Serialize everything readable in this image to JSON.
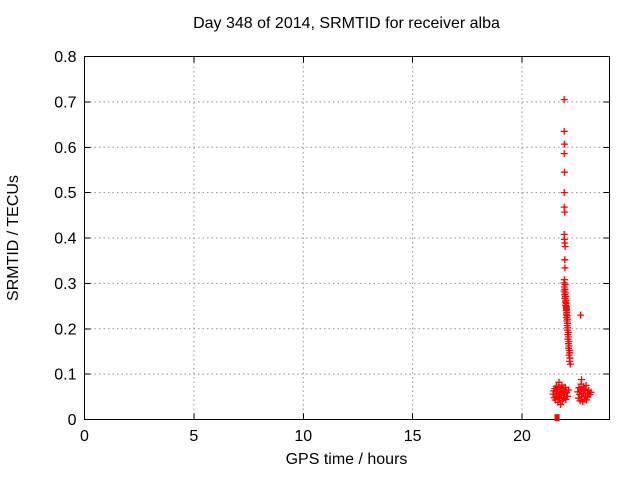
{
  "chart_data": {
    "type": "scatter",
    "title": "Day 348 of 2014, SRMTID for receiver alba",
    "xlabel": "GPS time / hours",
    "ylabel": "SRMTID / TECUs",
    "xlim": [
      0,
      24
    ],
    "ylim": [
      0,
      0.8
    ],
    "xticks": [
      0,
      5,
      10,
      15,
      20
    ],
    "yticks": [
      [
        0,
        "0"
      ],
      [
        0.1,
        "0.1"
      ],
      [
        0.2,
        "0.2"
      ],
      [
        0.3,
        "0.3"
      ],
      [
        0.4,
        "0.4"
      ],
      [
        0.5,
        "0.5"
      ],
      [
        0.6,
        "0.6"
      ],
      [
        0.7,
        "0.7"
      ],
      [
        0.8,
        "0.8"
      ]
    ],
    "grid": true,
    "legend": false,
    "colors": {
      "marker": "#ff0000",
      "grid": "#909090",
      "axis": "#000000",
      "background": "#ffffff"
    },
    "series": [
      {
        "name": "SRMTID",
        "marker": "plus",
        "points": [
          [
            21.93,
            0.705
          ],
          [
            21.93,
            0.635
          ],
          [
            21.94,
            0.607
          ],
          [
            21.93,
            0.586
          ],
          [
            21.94,
            0.545
          ],
          [
            21.93,
            0.5
          ],
          [
            21.93,
            0.468
          ],
          [
            21.95,
            0.457
          ],
          [
            21.93,
            0.408
          ],
          [
            21.94,
            0.397
          ],
          [
            21.95,
            0.389
          ],
          [
            21.97,
            0.381
          ],
          [
            21.95,
            0.352
          ],
          [
            21.96,
            0.334
          ],
          [
            21.94,
            0.308
          ],
          [
            21.92,
            0.301
          ],
          [
            21.97,
            0.297
          ],
          [
            21.94,
            0.292
          ],
          [
            21.96,
            0.287
          ],
          [
            21.93,
            0.283
          ],
          [
            21.98,
            0.279
          ],
          [
            21.95,
            0.275
          ],
          [
            21.99,
            0.271
          ],
          [
            21.96,
            0.267
          ],
          [
            22.0,
            0.263
          ],
          [
            21.98,
            0.259
          ],
          [
            22.02,
            0.256
          ],
          [
            21.99,
            0.252
          ],
          [
            22.03,
            0.249
          ],
          [
            22.01,
            0.246
          ],
          [
            22.04,
            0.243
          ],
          [
            22.02,
            0.24
          ],
          [
            22.05,
            0.236
          ],
          [
            22.03,
            0.232
          ],
          [
            22.06,
            0.229
          ],
          [
            22.04,
            0.225
          ],
          [
            22.07,
            0.221
          ],
          [
            22.05,
            0.217
          ],
          [
            22.68,
            0.23
          ],
          [
            22.08,
            0.212
          ],
          [
            22.06,
            0.207
          ],
          [
            22.09,
            0.202
          ],
          [
            22.07,
            0.197
          ],
          [
            22.11,
            0.192
          ],
          [
            22.09,
            0.187
          ],
          [
            22.12,
            0.182
          ],
          [
            22.1,
            0.177
          ],
          [
            22.14,
            0.172
          ],
          [
            22.12,
            0.167
          ],
          [
            22.15,
            0.162
          ],
          [
            22.13,
            0.157
          ],
          [
            22.16,
            0.152
          ],
          [
            22.18,
            0.147
          ],
          [
            22.15,
            0.142
          ],
          [
            22.19,
            0.135
          ],
          [
            22.17,
            0.128
          ],
          [
            22.21,
            0.122
          ],
          [
            21.42,
            0.056
          ],
          [
            21.45,
            0.063
          ],
          [
            21.47,
            0.048
          ],
          [
            21.5,
            0.068
          ],
          [
            21.52,
            0.043
          ],
          [
            21.55,
            0.058
          ],
          [
            21.57,
            0.073
          ],
          [
            21.6,
            0.05
          ],
          [
            21.62,
            0.065
          ],
          [
            21.64,
            0.038
          ],
          [
            21.66,
            0.071
          ],
          [
            21.68,
            0.054
          ],
          [
            21.69,
            0.082
          ],
          [
            21.72,
            0.046
          ],
          [
            21.74,
            0.061
          ],
          [
            21.76,
            0.033
          ],
          [
            21.78,
            0.067
          ],
          [
            21.8,
            0.052
          ],
          [
            21.82,
            0.076
          ],
          [
            21.84,
            0.042
          ],
          [
            21.86,
            0.059
          ],
          [
            21.88,
            0.069
          ],
          [
            21.9,
            0.047
          ],
          [
            21.92,
            0.063
          ],
          [
            21.95,
            0.055
          ],
          [
            21.98,
            0.071
          ],
          [
            22.0,
            0.044
          ],
          [
            22.04,
            0.06
          ],
          [
            22.08,
            0.051
          ],
          [
            22.13,
            0.065
          ],
          [
            22.55,
            0.061
          ],
          [
            22.58,
            0.047
          ],
          [
            22.6,
            0.07
          ],
          [
            22.63,
            0.055
          ],
          [
            22.65,
            0.041
          ],
          [
            22.67,
            0.066
          ],
          [
            22.7,
            0.078
          ],
          [
            22.72,
            0.088
          ],
          [
            22.73,
            0.05
          ],
          [
            22.75,
            0.062
          ],
          [
            22.77,
            0.039
          ],
          [
            22.8,
            0.072
          ],
          [
            22.82,
            0.057
          ],
          [
            22.85,
            0.045
          ],
          [
            22.87,
            0.067
          ],
          [
            22.9,
            0.052
          ],
          [
            22.93,
            0.075
          ],
          [
            22.95,
            0.043
          ],
          [
            22.98,
            0.058
          ],
          [
            23.01,
            0.05
          ],
          [
            23.05,
            0.064
          ],
          [
            23.1,
            0.055
          ],
          [
            23.15,
            0.06
          ]
        ],
        "square_points": [
          [
            21.6,
            0.004
          ]
        ]
      }
    ]
  }
}
